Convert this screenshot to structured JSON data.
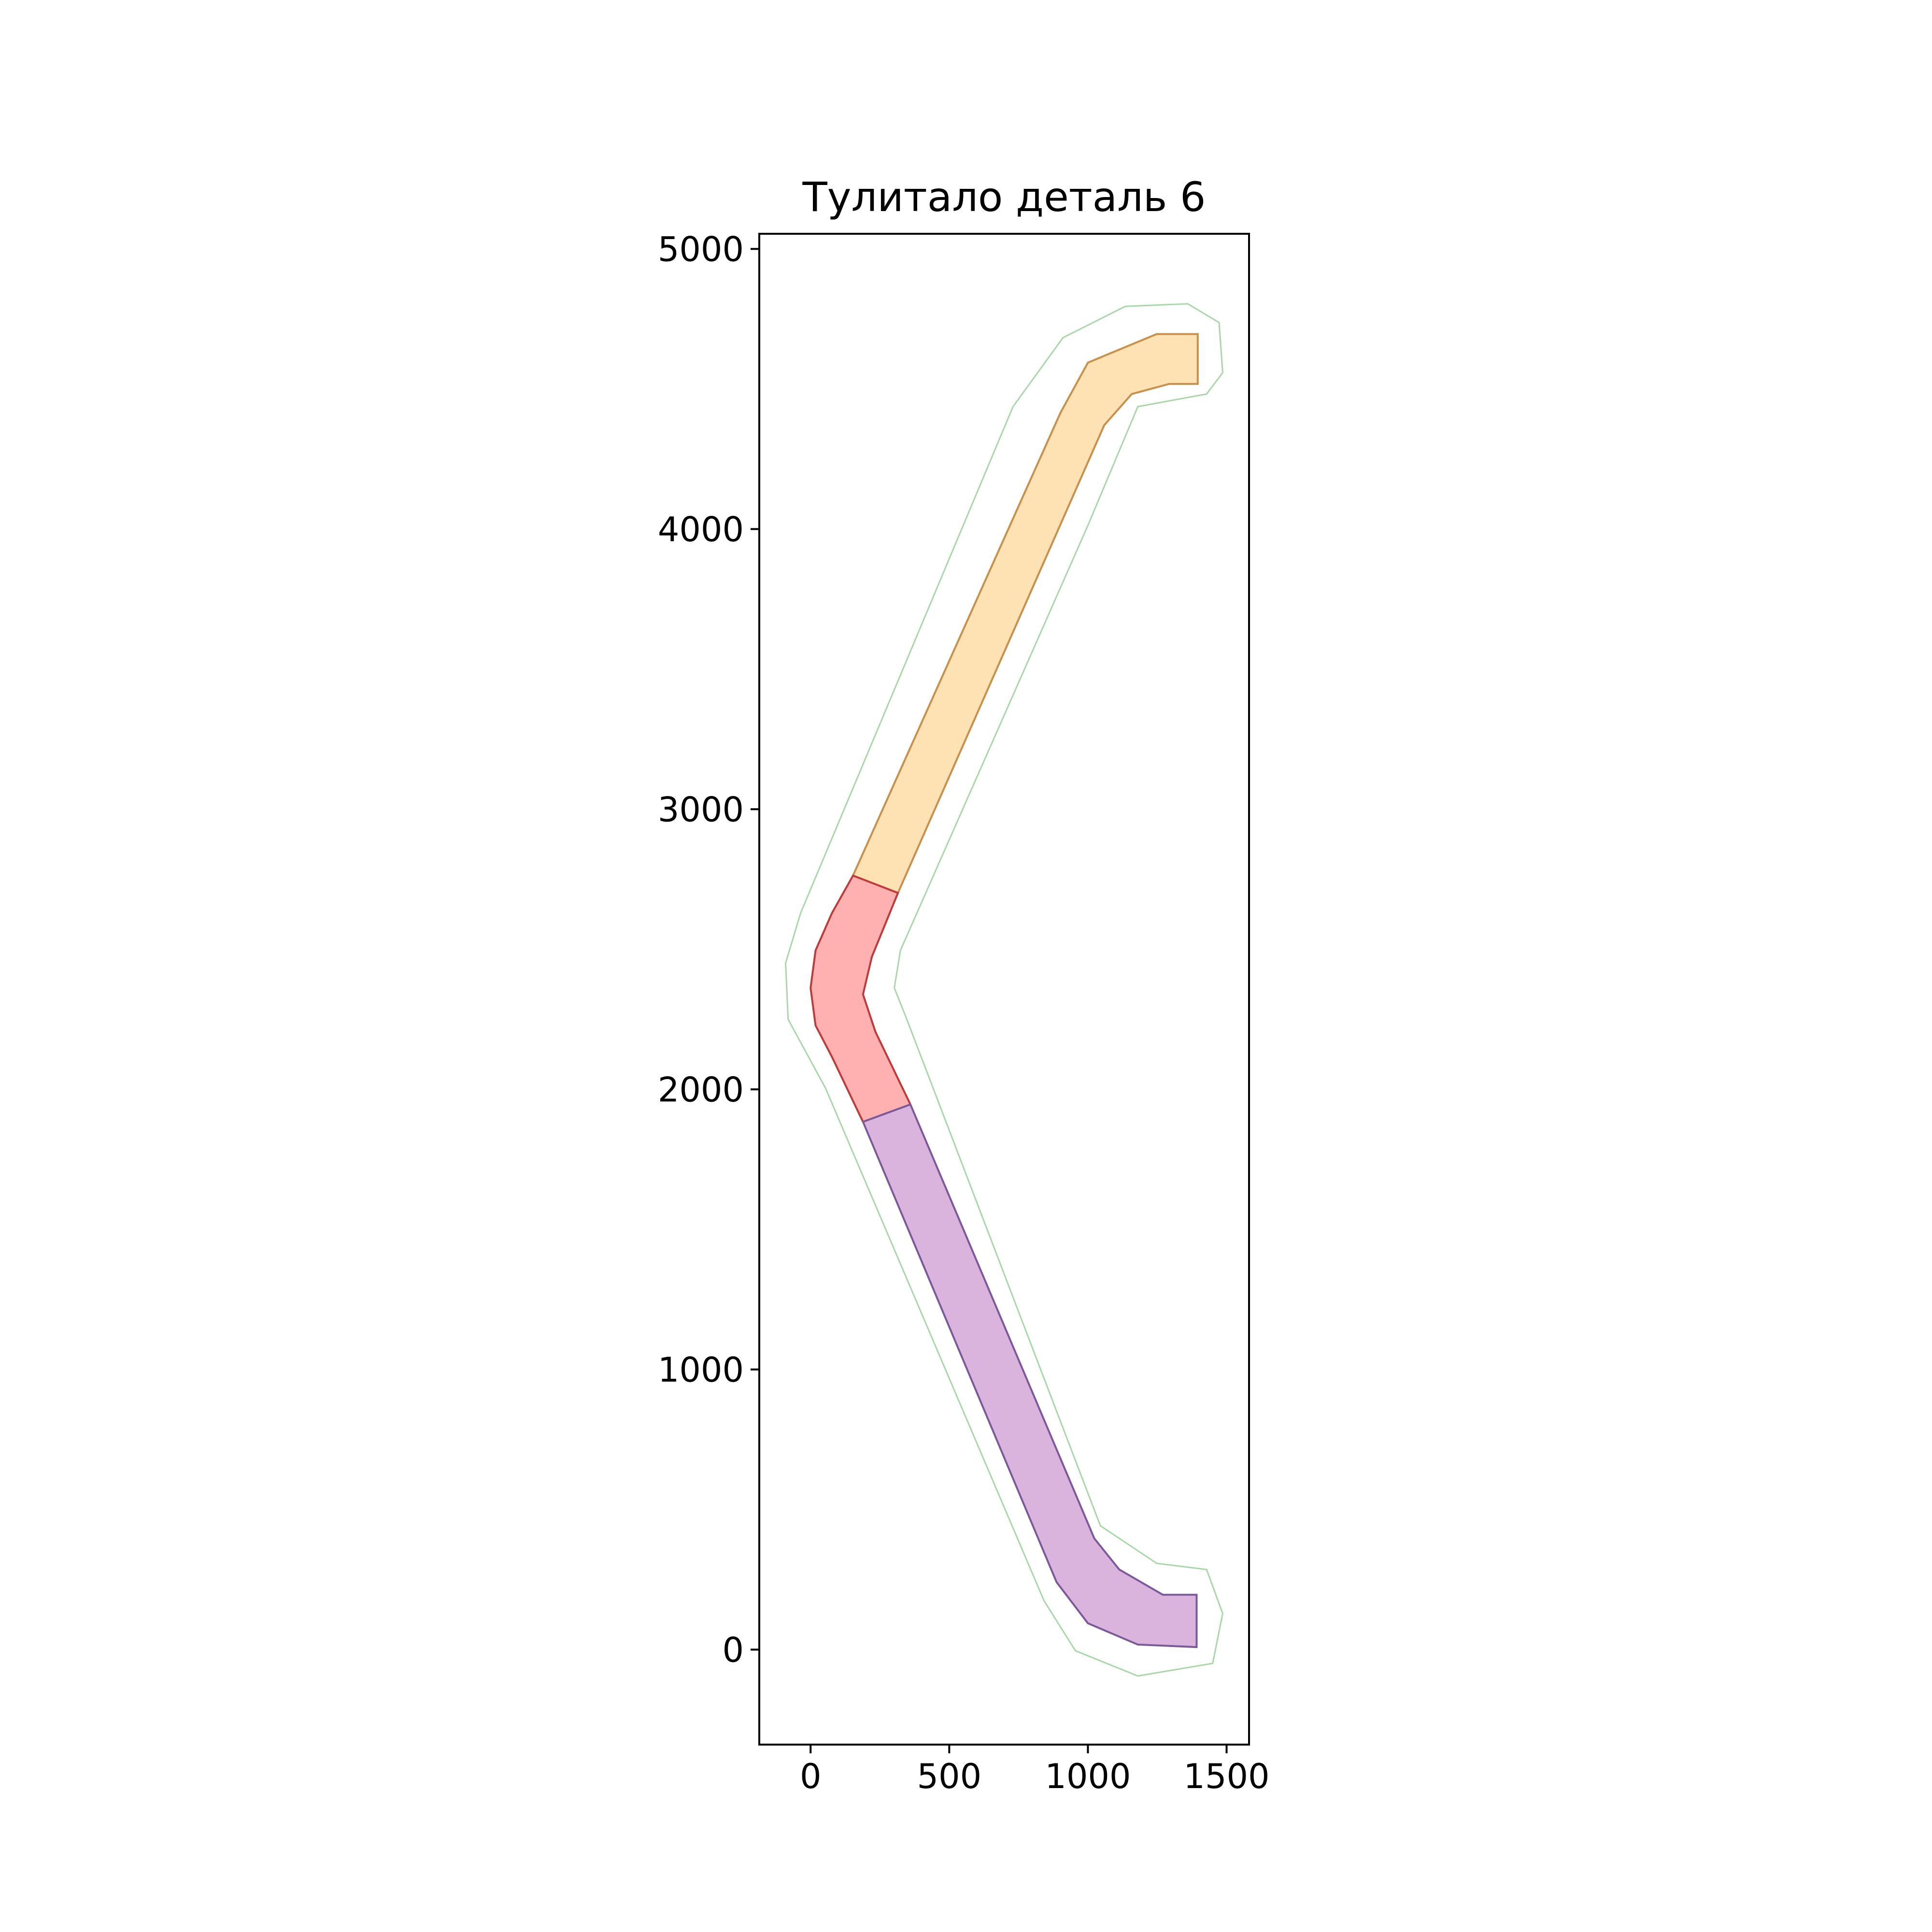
{
  "chart_data": {
    "type": "polygon",
    "title": "Тулитало деталь 6",
    "xlim": [
      -185,
      1581
    ],
    "ylim": [
      -339,
      5054
    ],
    "xticks": [
      0,
      500,
      1000,
      1500
    ],
    "yticks": [
      0,
      1000,
      2000,
      3000,
      4000,
      5000
    ],
    "series": [
      {
        "color": "#a8d8a8",
        "fill": false,
        "x": [
          1360,
          1473,
          1486,
          1428,
          1180,
          1000,
          324,
          302,
          347,
          1045,
          1248,
          1428,
          1486,
          1450,
          1180,
          955,
          842,
          54,
          -81,
          -90,
          -36,
          730,
          910,
          1135
        ],
        "y": [
          4804,
          4737,
          4558,
          4482,
          4437,
          4013,
          2496,
          2362,
          2250,
          442,
          308,
          286,
          129,
          -49,
          -94,
          -4,
          174,
          2004,
          2250,
          2451,
          2629,
          4437,
          4683,
          4795
        ]
      },
      {
        "color": "#c8904a",
        "fill": "#ffe2b4",
        "x": [
          1396,
          1248,
          1000,
          901,
          153,
          315,
          1059,
          1158,
          1293,
          1396
        ],
        "y": [
          4696,
          4696,
          4594,
          4415,
          2763,
          2701,
          4371,
          4482,
          4518,
          4518
        ]
      },
      {
        "color": "#c03a3a",
        "fill": "#ffb0b0",
        "x": [
          153,
          77,
          18,
          0,
          18,
          77,
          189,
          360,
          234,
          189,
          221,
          315
        ],
        "y": [
          2763,
          2629,
          2496,
          2362,
          2228,
          2116,
          1884,
          1946,
          2205,
          2339,
          2473,
          2701
        ]
      },
      {
        "color": "#7a5a9a",
        "fill": "#dab4dc",
        "x": [
          189,
          887,
          1000,
          1180,
          1392,
          1392,
          1270,
          1113,
          1023,
          360
        ],
        "y": [
          1884,
          241,
          94,
          18,
          9,
          196,
          196,
          286,
          397,
          1946
        ]
      }
    ]
  }
}
